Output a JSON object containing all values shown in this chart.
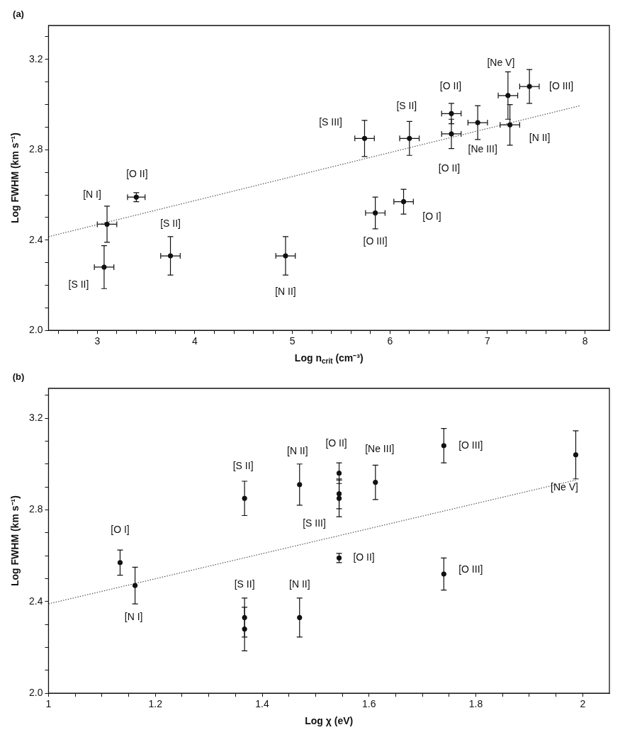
{
  "chart_data": [
    {
      "type": "scatter",
      "title": "(a)",
      "xlabel": "Log n$_{crit}$ (cm⁻³)",
      "ylabel": "Log FWHM (km s⁻¹)",
      "xlim": [
        2.5,
        8.25
      ],
      "ylim": [
        2.0,
        3.35
      ],
      "xticks": [
        {
          "value": 2.6,
          "label": null
        },
        {
          "value": 2.8,
          "label": null
        },
        3,
        {
          "value": 3.2,
          "label": null
        },
        {
          "value": 3.4,
          "label": null
        },
        {
          "value": 3.6,
          "label": null
        },
        {
          "value": 3.8,
          "label": null
        },
        4,
        {
          "value": 4.2,
          "label": null
        },
        {
          "value": 4.4,
          "label": null
        },
        {
          "value": 4.6,
          "label": null
        },
        {
          "value": 4.8,
          "label": null
        },
        5,
        {
          "value": 5.2,
          "label": null
        },
        {
          "value": 5.4,
          "label": null
        },
        {
          "value": 5.6,
          "label": null
        },
        {
          "value": 5.8,
          "label": null
        },
        6,
        {
          "value": 6.2,
          "label": null
        },
        {
          "value": 6.4,
          "label": null
        },
        {
          "value": 6.6,
          "label": null
        },
        {
          "value": 6.8,
          "label": null
        },
        7,
        {
          "value": 7.2,
          "label": null
        },
        {
          "value": 7.4,
          "label": null
        },
        {
          "value": 7.6,
          "label": null
        },
        {
          "value": 7.8,
          "label": null
        },
        8
      ],
      "yticks": [
        {
          "value": 2.0,
          "label": "2.0"
        },
        {
          "value": 2.1,
          "label": null
        },
        {
          "value": 2.2,
          "label": null
        },
        {
          "value": 2.3,
          "label": null
        },
        {
          "value": 2.4,
          "label": "2.4"
        },
        {
          "value": 2.5,
          "label": null
        },
        {
          "value": 2.6,
          "label": null
        },
        {
          "value": 2.7,
          "label": null
        },
        {
          "value": 2.8,
          "label": "2.8"
        },
        {
          "value": 2.9,
          "label": null
        },
        {
          "value": 3.0,
          "label": null
        },
        {
          "value": 3.1,
          "label": null
        },
        {
          "value": 3.2,
          "label": "3.2"
        },
        {
          "value": 3.3,
          "label": null
        }
      ],
      "series": [
        {
          "color": "#111111",
          "marker": "circle",
          "x": [
            5.74,
            6.2,
            6.63,
            6.63,
            6.9,
            7.21,
            7.23,
            7.43,
            3.4,
            3.1,
            3.07,
            3.75,
            4.93,
            5.85,
            6.14
          ],
          "values": [
            2.85,
            2.85,
            2.96,
            2.87,
            2.92,
            3.04,
            2.91,
            3.08,
            2.59,
            2.47,
            2.28,
            2.33,
            2.33,
            2.52,
            2.57
          ],
          "errors": [
            0.08,
            0.075,
            0.045,
            0.065,
            0.075,
            0.105,
            0.09,
            0.075,
            0.02,
            0.08,
            0.095,
            0.085,
            0.085,
            0.07,
            0.055
          ],
          "xerrors": [
            0.1,
            0.1,
            0.1,
            0.1,
            0.1,
            0.1,
            0.1,
            0.1,
            0.09,
            0.1,
            0.1,
            0.1,
            0.1,
            0.1,
            0.1
          ]
        },
        {
          "type": "line",
          "color": "#555555",
          "marker": "none",
          "line_style": "dotted",
          "x": [
            2.5,
            7.95
          ],
          "values": [
            2.415,
            2.995
          ]
        }
      ],
      "annotations": [
        {
          "text": "[Ne V]",
          "x": 7.21,
          "y": 3.04
        },
        {
          "text": "[O III]",
          "x": 7.43,
          "y": 3.08
        },
        {
          "text": "[O II]",
          "x": 6.63,
          "y": 2.96
        },
        {
          "text": "[S II]",
          "x": 6.2,
          "y": 2.85
        },
        {
          "text": "[S III]",
          "x": 5.74,
          "y": 2.85
        },
        {
          "text": "[N II]",
          "x": 7.23,
          "y": 2.91
        },
        {
          "text": "[Ne III]",
          "x": 6.9,
          "y": 2.92
        },
        {
          "text": "[O II]",
          "x": 6.63,
          "y": 2.87
        },
        {
          "text": "[O II]",
          "x": 3.4,
          "y": 2.59
        },
        {
          "text": "[N I]",
          "x": 3.1,
          "y": 2.47
        },
        {
          "text": "[S II]",
          "x": 3.75,
          "y": 2.33
        },
        {
          "text": "[S II]",
          "x": 3.07,
          "y": 2.28
        },
        {
          "text": "[N II]",
          "x": 4.93,
          "y": 2.33
        },
        {
          "text": "[O III]",
          "x": 5.85,
          "y": 2.52
        },
        {
          "text": "[O I]",
          "x": 6.14,
          "y": 2.57
        }
      ]
    },
    {
      "type": "scatter",
      "title": "(b)",
      "xlabel": "Log χ (eV)",
      "ylabel": "Log FWHM (km s⁻¹)",
      "xlim": [
        1.0,
        2.05
      ],
      "ylim": [
        2.0,
        3.33
      ],
      "xticks": [
        1,
        {
          "value": 1.05,
          "label": null
        },
        {
          "value": 1.1,
          "label": null
        },
        {
          "value": 1.15,
          "label": null
        },
        1.2,
        {
          "value": 1.25,
          "label": null
        },
        {
          "value": 1.3,
          "label": null
        },
        {
          "value": 1.35,
          "label": null
        },
        1.4,
        {
          "value": 1.45,
          "label": null
        },
        {
          "value": 1.5,
          "label": null
        },
        {
          "value": 1.55,
          "label": null
        },
        1.6,
        {
          "value": 1.65,
          "label": null
        },
        {
          "value": 1.7,
          "label": null
        },
        {
          "value": 1.75,
          "label": null
        },
        1.8,
        {
          "value": 1.85,
          "label": null
        },
        {
          "value": 1.9,
          "label": null
        },
        {
          "value": 1.95,
          "label": null
        },
        2
      ],
      "yticks": [
        {
          "value": 2.0,
          "label": "2.0"
        },
        {
          "value": 2.1,
          "label": null
        },
        {
          "value": 2.2,
          "label": null
        },
        {
          "value": 2.3,
          "label": null
        },
        {
          "value": 2.4,
          "label": "2.4"
        },
        {
          "value": 2.5,
          "label": null
        },
        {
          "value": 2.6,
          "label": null
        },
        {
          "value": 2.7,
          "label": null
        },
        {
          "value": 2.8,
          "label": "2.8"
        },
        {
          "value": 2.9,
          "label": null
        },
        {
          "value": 3.0,
          "label": null
        },
        {
          "value": 3.1,
          "label": null
        },
        {
          "value": 3.2,
          "label": "3.2"
        },
        {
          "value": 3.3,
          "label": null
        }
      ],
      "series": [
        {
          "color": "#111111",
          "marker": "circle",
          "x": [
            1.134,
            1.162,
            1.367,
            1.367,
            1.367,
            1.47,
            1.47,
            1.544,
            1.544,
            1.544,
            1.544,
            1.612,
            1.74,
            1.74,
            1.987
          ],
          "values": [
            2.57,
            2.47,
            2.85,
            2.33,
            2.28,
            2.91,
            2.33,
            2.96,
            2.87,
            2.85,
            2.59,
            2.92,
            3.08,
            2.52,
            3.04
          ],
          "errors": [
            0.055,
            0.08,
            0.075,
            0.085,
            0.095,
            0.09,
            0.085,
            0.045,
            0.065,
            0.08,
            0.02,
            0.075,
            0.075,
            0.07,
            0.105
          ]
        },
        {
          "type": "line",
          "color": "#555555",
          "marker": "none",
          "line_style": "dotted",
          "x": [
            1.0,
            1.987
          ],
          "values": [
            2.39,
            2.93
          ]
        }
      ],
      "annotations": [
        {
          "text": "[S II]",
          "x": 1.367,
          "y": 2.85
        },
        {
          "text": "[N II]",
          "x": 1.47,
          "y": 2.91
        },
        {
          "text": "[O II]",
          "x": 1.544,
          "y": 2.96
        },
        {
          "text": "[Ne III]",
          "x": 1.612,
          "y": 2.92
        },
        {
          "text": "[O III]",
          "x": 1.74,
          "y": 3.08
        },
        {
          "text": "[Ne V]",
          "x": 1.987,
          "y": 3.04
        },
        {
          "text": "[O I]",
          "x": 1.134,
          "y": 2.57
        },
        {
          "text": "[S III]",
          "x": 1.544,
          "y": 2.85
        },
        {
          "text": "[O II]",
          "x": 1.544,
          "y": 2.59
        },
        {
          "text": "[O III]",
          "x": 1.74,
          "y": 2.52
        },
        {
          "text": "[S II]",
          "x": 1.367,
          "y": 2.33
        },
        {
          "text": "[N II]",
          "x": 1.47,
          "y": 2.33
        },
        {
          "text": "[N I]",
          "x": 1.162,
          "y": 2.47
        }
      ]
    }
  ]
}
